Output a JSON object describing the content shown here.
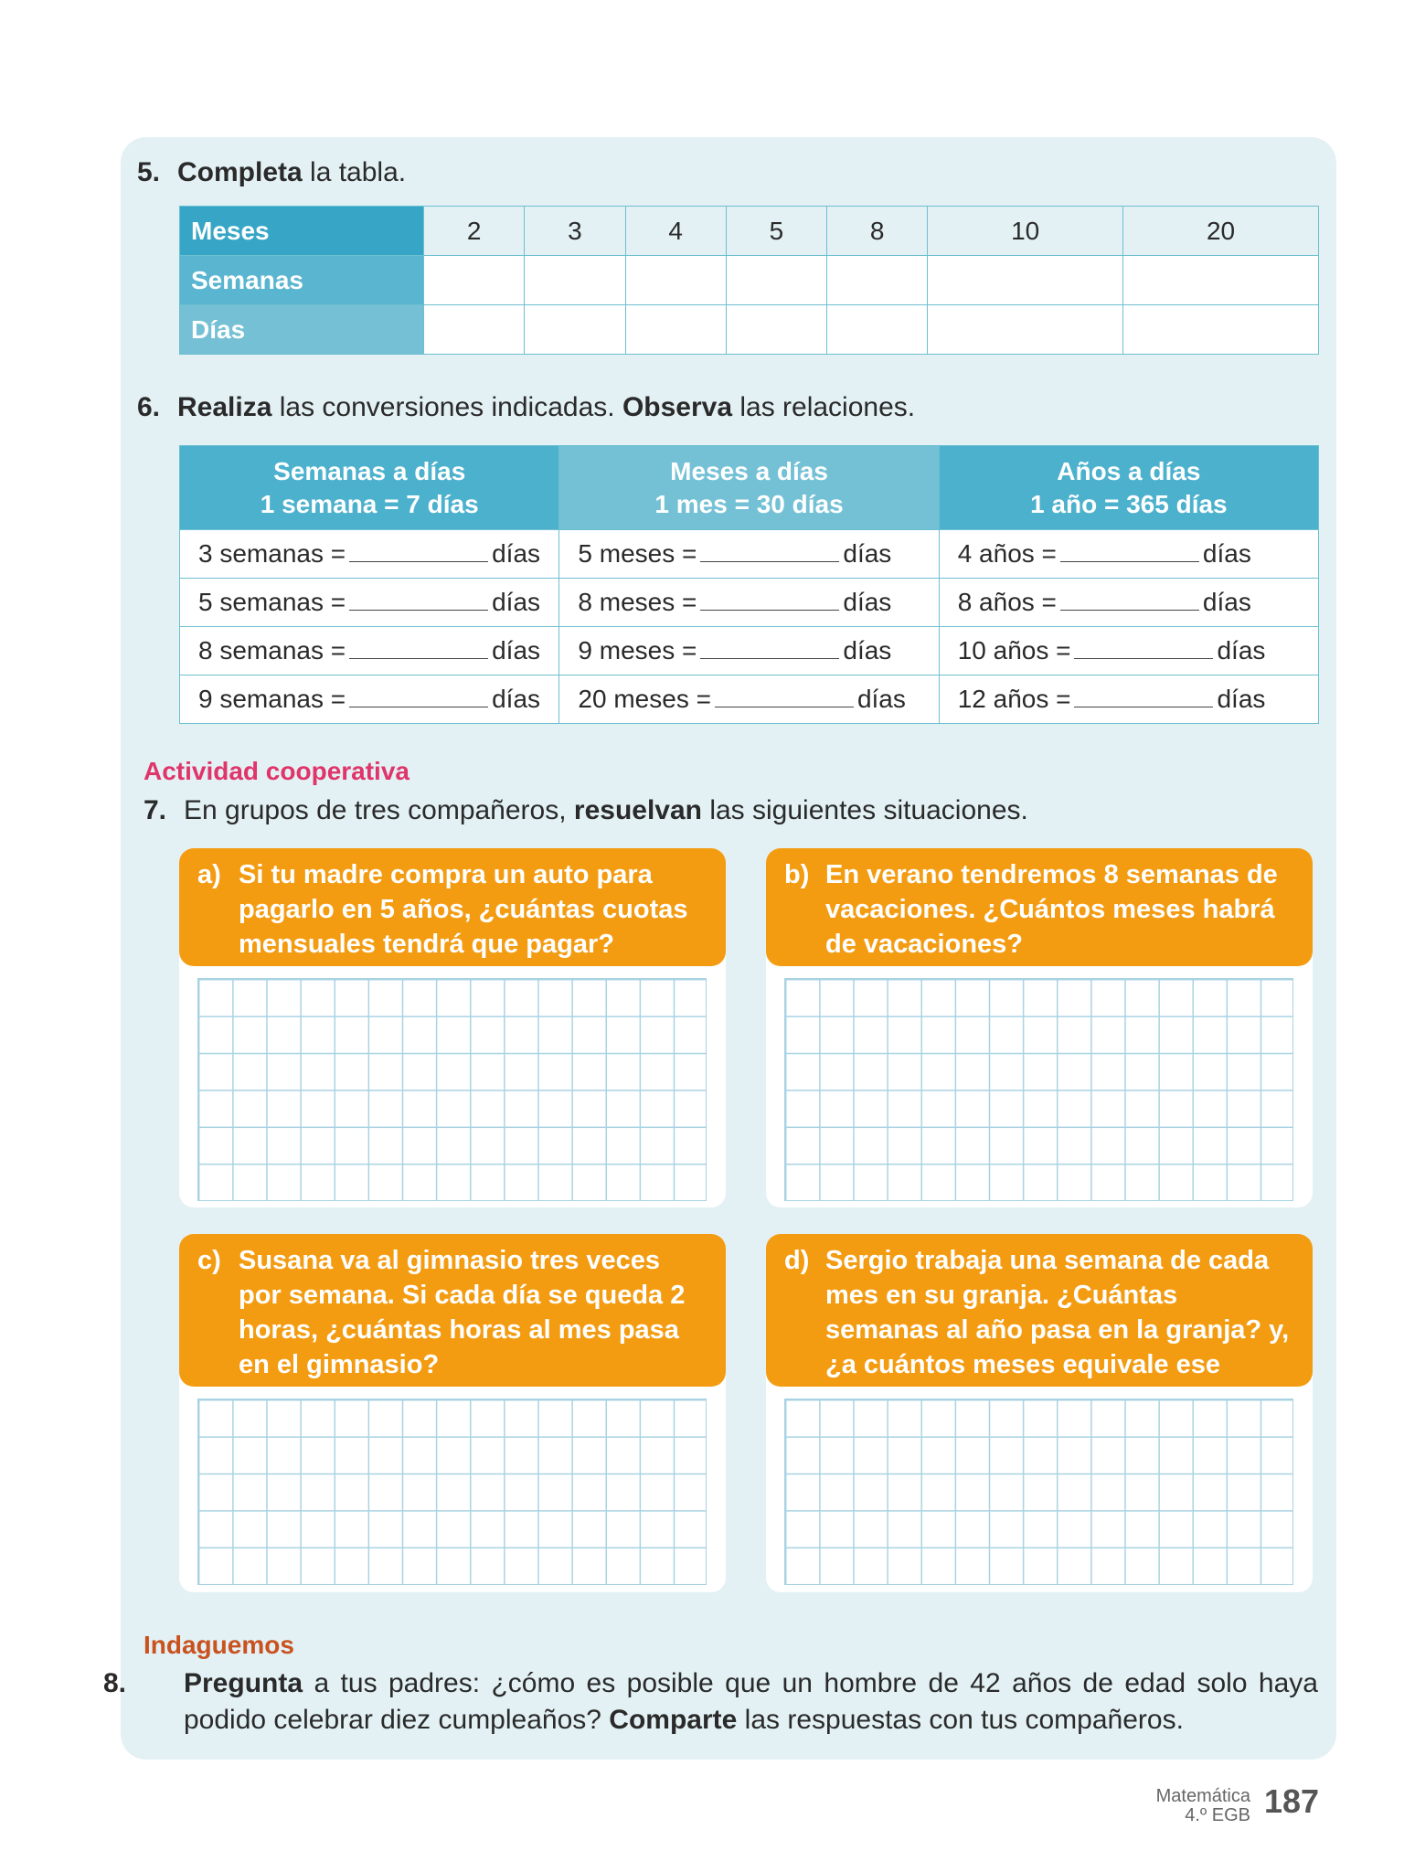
{
  "q5": {
    "number": "5.",
    "verb": "Completa",
    "rest": " la tabla.",
    "rows": [
      {
        "label": "Meses",
        "color": "#37a6c6",
        "values": [
          "2",
          "3",
          "4",
          "5",
          "8",
          "10",
          "20"
        ]
      },
      {
        "label": "Semanas",
        "color": "#59b5d0",
        "values": [
          "",
          "",
          "",
          "",
          "",
          "",
          ""
        ]
      },
      {
        "label": "Días",
        "color": "#76c0d5",
        "values": [
          "",
          "",
          "",
          "",
          "",
          "",
          ""
        ]
      }
    ]
  },
  "q6": {
    "number": "6.",
    "verb1": "Realiza",
    "mid": " las conversiones indicadas. ",
    "verb2": "Observa",
    "rest": " las relaciones.",
    "headers": [
      {
        "title": "Semanas a días",
        "rule": "1 semana = 7 días",
        "color": "#4cb1cd"
      },
      {
        "title": "Meses a días",
        "rule": "1 mes = 30 días",
        "color": "#74c1d6"
      },
      {
        "title": "Años a días",
        "rule": "1 año = 365 días",
        "color": "#4cb1cd"
      }
    ],
    "unit": "días",
    "rows": [
      [
        "3 semanas =",
        "5 meses =",
        "4 años ="
      ],
      [
        "5 semanas =",
        "8 meses =",
        "8 años ="
      ],
      [
        "8 semanas =",
        "9 meses =",
        "10 años ="
      ],
      [
        "9 semanas =",
        "20 meses =",
        "12 años ="
      ]
    ]
  },
  "coop": {
    "label": "Actividad cooperativa",
    "color": "#e0356a"
  },
  "q7": {
    "number": "7.",
    "pre": "En grupos de tres compañeros, ",
    "verb": "resuelvan",
    "rest": " las siguientes situaciones.",
    "items": [
      {
        "letter": "a)",
        "text": "Si tu madre compra un auto para pagarlo en 5 años, ¿cuántas cuotas mensuales tendrá que pagar?"
      },
      {
        "letter": "b)",
        "text": "En verano tendremos 8 semanas de vacaciones. ¿Cuántos meses habrá de vacaciones?"
      },
      {
        "letter": "c)",
        "text": "Susana va al gimnasio tres veces por semana. Si cada día se queda 2 horas, ¿cuántas horas al mes pasa en el gimnasio?"
      },
      {
        "letter": "d)",
        "text": "Sergio trabaja una semana de cada mes en su granja. ¿Cuántas semanas al año pasa en la granja? y, ¿a cuántos meses equivale ese tiempo?"
      }
    ]
  },
  "indaguemos": {
    "label": "Indaguemos",
    "color": "#c9521f"
  },
  "q8": {
    "number": "8.",
    "verb1": "Pregunta",
    "mid": " a tus padres: ¿cómo es posible que un hombre de 42 años de edad solo haya podido celebrar diez cumpleaños? ",
    "verb2": "Comparte",
    "rest": " las respuestas con tus compañeros."
  },
  "footer": {
    "subject": "Matemática",
    "grade": "4.º EGB",
    "page": "187"
  }
}
